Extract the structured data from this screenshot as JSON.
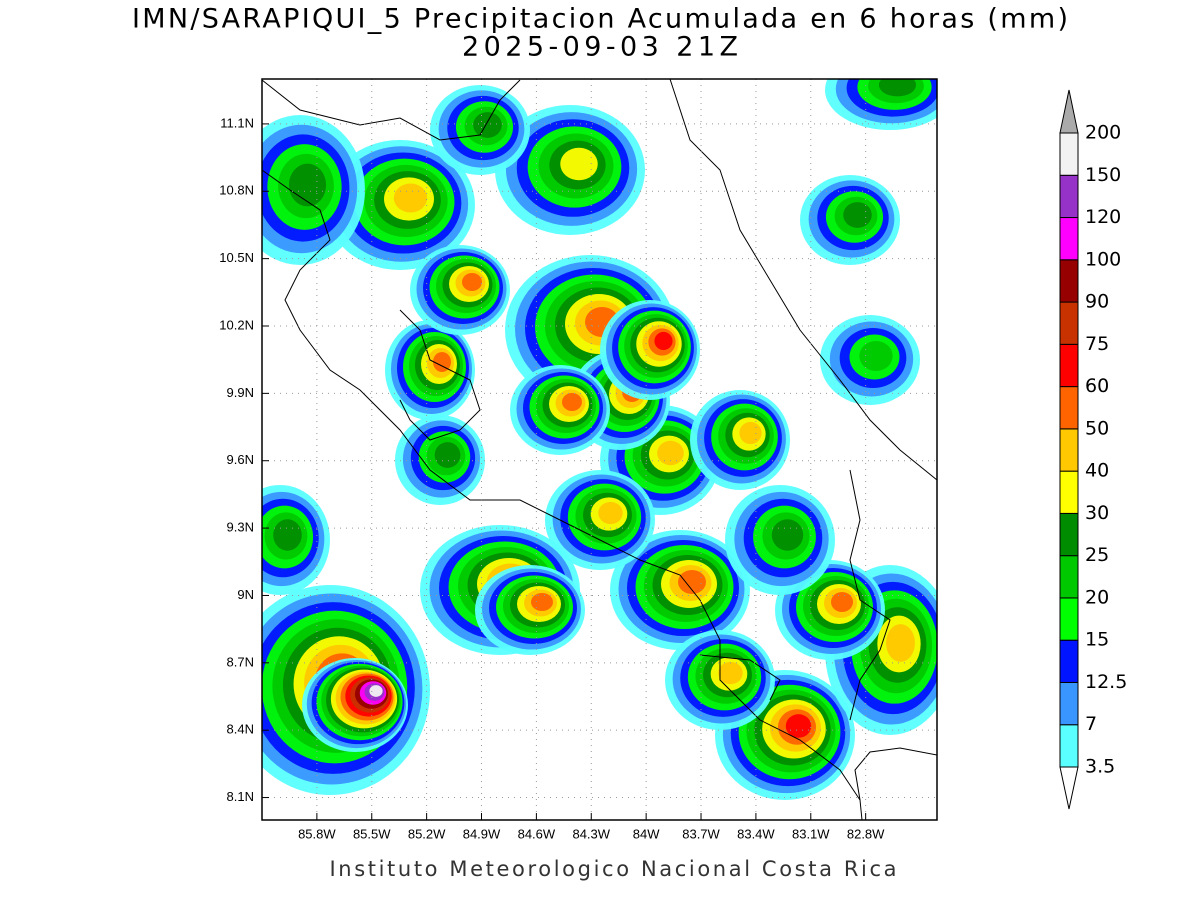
{
  "title": "IMN/SARAPIQUI_5 Precipitacion Acumulada en 6 horas (mm)",
  "subtitle": "2025-09-03 21Z",
  "footer": "Instituto Meteorologico Nacional Costa Rica",
  "map": {
    "xlim": [
      -86.1,
      -82.41
    ],
    "ylim": [
      8.0,
      11.3
    ],
    "xticks": [
      {
        "value": -85.8,
        "label": "85.8W"
      },
      {
        "value": -85.5,
        "label": "85.5W"
      },
      {
        "value": -85.2,
        "label": "85.2W"
      },
      {
        "value": -84.9,
        "label": "84.9W"
      },
      {
        "value": -84.6,
        "label": "84.6W"
      },
      {
        "value": -84.3,
        "label": "84.3W"
      },
      {
        "value": -84,
        "label": "84W"
      },
      {
        "value": -83.7,
        "label": "83.7W"
      },
      {
        "value": -83.4,
        "label": "83.4W"
      },
      {
        "value": -83.1,
        "label": "83.1W"
      },
      {
        "value": -82.8,
        "label": "82.8W"
      }
    ],
    "yticks": [
      {
        "value": 8.1,
        "label": "8.1N"
      },
      {
        "value": 8.4,
        "label": "8.4N"
      },
      {
        "value": 8.7,
        "label": "8.7N"
      },
      {
        "value": 9,
        "label": "9N"
      },
      {
        "value": 9.3,
        "label": "9.3N"
      },
      {
        "value": 9.6,
        "label": "9.6N"
      },
      {
        "value": 9.9,
        "label": "9.9N"
      },
      {
        "value": 10.2,
        "label": "10.2N"
      },
      {
        "value": 10.5,
        "label": "10.5N"
      },
      {
        "value": 10.8,
        "label": "10.8N"
      },
      {
        "value": 11.1,
        "label": "11.1N"
      }
    ],
    "grid": true
  },
  "colorbar": {
    "levels": [
      3.5,
      7,
      12.5,
      15,
      20,
      25,
      30,
      40,
      50,
      60,
      75,
      90,
      100,
      120,
      150,
      200
    ],
    "colors": [
      "#5affff",
      "#3a96ff",
      "#0014ff",
      "#00ff00",
      "#00c800",
      "#008c00",
      "#ffff00",
      "#ffc800",
      "#ff6400",
      "#ff0000",
      "#c83200",
      "#960000",
      "#ff00ff",
      "#9632c8",
      "#f2f2f2"
    ],
    "under_color": "#ffffff",
    "over_color": "#aaaaaa"
  }
}
